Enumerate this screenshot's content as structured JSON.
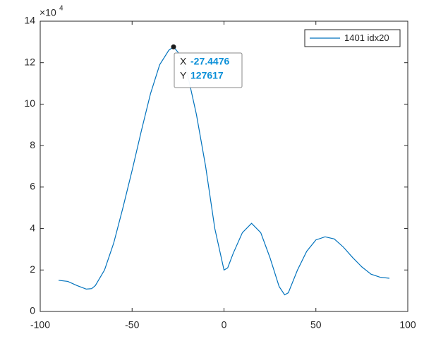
{
  "chart_data": {
    "type": "line",
    "x": [
      -90,
      -85,
      -80,
      -75,
      -72,
      -70,
      -65,
      -60,
      -55,
      -50,
      -45,
      -40,
      -35,
      -30,
      -27.4476,
      -25,
      -20,
      -15,
      -10,
      -5,
      0,
      2,
      5,
      10,
      15,
      20,
      25,
      30,
      33,
      35,
      40,
      45,
      50,
      55,
      60,
      65,
      70,
      75,
      80,
      85,
      90
    ],
    "series": [
      {
        "name": "1401 idx20",
        "color": "#0072bd",
        "values": [
          15000,
          14500,
          12500,
          10800,
          11000,
          12500,
          20000,
          33000,
          50000,
          68000,
          87000,
          105000,
          119000,
          126000,
          127617,
          125000,
          115000,
          95000,
          70000,
          40000,
          20000,
          21000,
          28000,
          38000,
          42500,
          38000,
          26000,
          12000,
          8000,
          9000,
          20000,
          29000,
          34500,
          36000,
          35000,
          31000,
          26000,
          21500,
          18000,
          16500,
          16000
        ]
      }
    ],
    "xlim": [
      -100,
      100
    ],
    "xticks": [
      -100,
      -50,
      0,
      50,
      100
    ],
    "ylim": [
      0,
      140000
    ],
    "yticks": [
      {
        "value": 0,
        "label": "0"
      },
      {
        "value": 20000,
        "label": "2"
      },
      {
        "value": 40000,
        "label": "4"
      },
      {
        "value": 60000,
        "label": "6"
      },
      {
        "value": 80000,
        "label": "8"
      },
      {
        "value": 100000,
        "label": "10"
      },
      {
        "value": 120000,
        "label": "12"
      },
      {
        "value": 140000,
        "label": "14"
      }
    ],
    "y_multiplier": {
      "base": "×10",
      "exponent": "4"
    },
    "legend": "top-right",
    "datatip": {
      "x_label": "X",
      "x": -27.4476,
      "y_label": "Y",
      "y": 127617
    }
  }
}
